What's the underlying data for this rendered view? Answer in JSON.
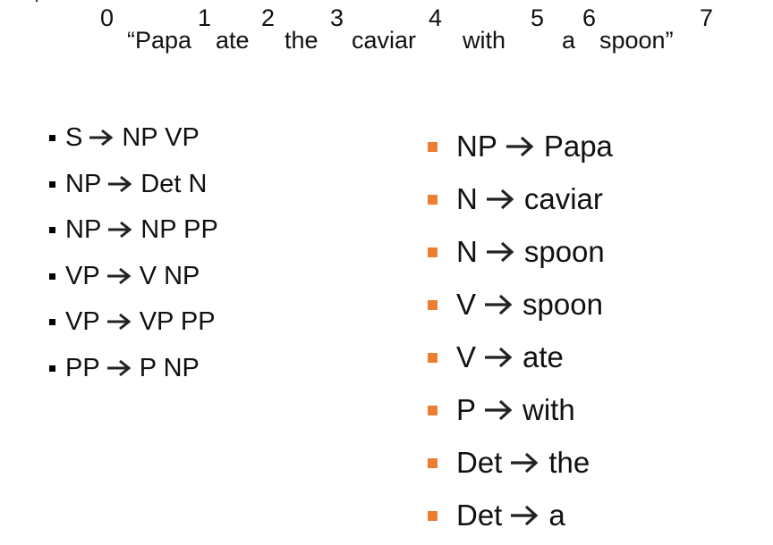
{
  "sentence": {
    "indices": [
      "0",
      "1",
      "2",
      "3",
      "4",
      "5",
      "6",
      "7"
    ],
    "words": [
      "“Papa",
      "ate",
      "the",
      "caviar",
      "with",
      "a",
      "spoon”"
    ]
  },
  "colors": {
    "left_bullet": "#000000",
    "right_bullet": "#ed7d31",
    "arrow_icon": "#222222"
  },
  "icons": {
    "arrow": "right-arrow-icon"
  },
  "left_rules": [
    {
      "lhs": "S",
      "rhs": "NP VP"
    },
    {
      "lhs": "NP",
      "rhs": "Det N"
    },
    {
      "lhs": "NP",
      "rhs": "NP PP"
    },
    {
      "lhs": "VP",
      "rhs": "V NP"
    },
    {
      "lhs": "VP",
      "rhs": "VP PP"
    },
    {
      "lhs": "PP",
      "rhs": "P NP"
    }
  ],
  "right_rules": [
    {
      "lhs": "NP",
      "rhs": "Papa"
    },
    {
      "lhs": "N",
      "rhs": "caviar"
    },
    {
      "lhs": "N",
      "rhs": "spoon"
    },
    {
      "lhs": "V",
      "rhs": "spoon"
    },
    {
      "lhs": "V",
      "rhs": "ate"
    },
    {
      "lhs": "P",
      "rhs": "with"
    },
    {
      "lhs": "Det",
      "rhs": "the"
    },
    {
      "lhs": "Det",
      "rhs": "a"
    }
  ]
}
